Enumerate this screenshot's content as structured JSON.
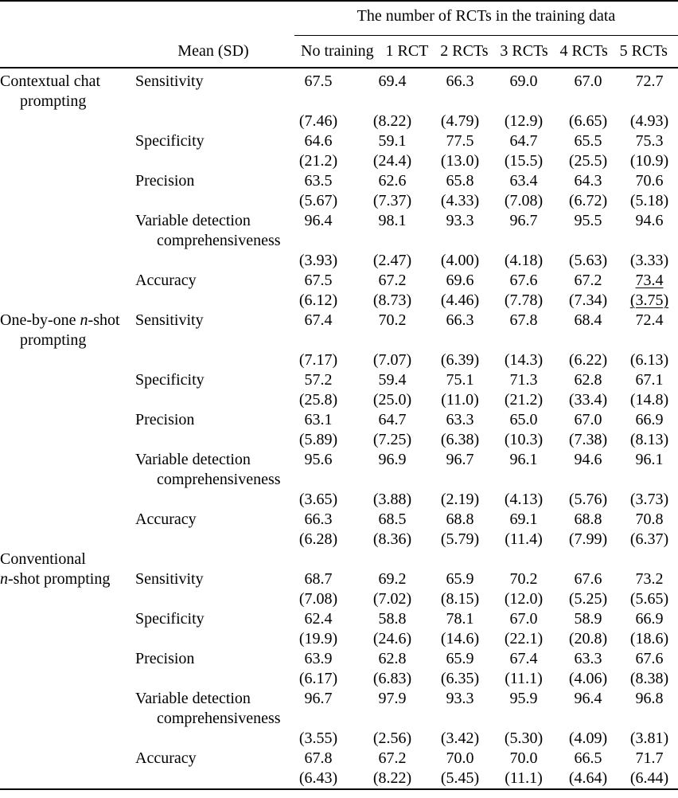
{
  "page": {
    "background_color": "#ffffff",
    "text_color": "#000000",
    "rule_color": "#000000"
  },
  "table": {
    "spanner_title": "The number of RCTs in the training data",
    "stat_header": "Mean (SD)",
    "col_headers": [
      "No training",
      "1 RCT",
      "2 RCTs",
      "3 RCTs",
      "4 RCTs",
      "5 RCTs"
    ],
    "row_group_labels": [
      "Contextual chat prompting",
      "One-by-one n-shot prompting",
      "Conventional n-shot prompting"
    ],
    "metric_labels": [
      "Sensitivity",
      "Specificity",
      "Precision",
      "Variable detection comprehensiveness",
      "Accuracy"
    ],
    "lines": [
      {
        "g": "Contextual chat",
        "m": "Sensitivity",
        "v": [
          "67.5",
          "69.4",
          "66.3",
          "69.0",
          "67.0",
          "72.7"
        ]
      },
      {
        "g": "prompting",
        "gi": 1
      },
      {
        "v": [
          "(7.46)",
          "(8.22)",
          "(4.79)",
          "(12.9)",
          "(6.65)",
          "(4.93)"
        ]
      },
      {
        "m": "Specificity",
        "v": [
          "64.6",
          "59.1",
          "77.5",
          "64.7",
          "65.5",
          "75.3"
        ]
      },
      {
        "v": [
          "(21.2)",
          "(24.4)",
          "(13.0)",
          "(15.5)",
          "(25.5)",
          "(10.9)"
        ]
      },
      {
        "m": "Precision",
        "v": [
          "63.5",
          "62.6",
          "65.8",
          "63.4",
          "64.3",
          "70.6"
        ]
      },
      {
        "v": [
          "(5.67)",
          "(7.37)",
          "(4.33)",
          "(7.08)",
          "(6.72)",
          "(5.18)"
        ]
      },
      {
        "m": "Variable detection",
        "v": [
          "96.4",
          "98.1",
          "93.3",
          "96.7",
          "95.5",
          "94.6"
        ]
      },
      {
        "m": "comprehensiveness",
        "mi": 1
      },
      {
        "v": [
          "(3.93)",
          "(2.47)",
          "(4.00)",
          "(4.18)",
          "(5.63)",
          "(3.33)"
        ]
      },
      {
        "m": "Accuracy",
        "v": [
          "67.5",
          "67.2",
          "69.6",
          "67.6",
          "67.2",
          "73.4"
        ],
        "ul": [
          5
        ]
      },
      {
        "v": [
          "(6.12)",
          "(8.73)",
          "(4.46)",
          "(7.78)",
          "(7.34)",
          "(3.75)"
        ],
        "ul": [
          5
        ]
      },
      {
        "g": "One-by-one n-shot",
        "gn": 1,
        "m": "Sensitivity",
        "v": [
          "67.4",
          "70.2",
          "66.3",
          "67.8",
          "68.4",
          "72.4"
        ]
      },
      {
        "g": "prompting",
        "gi": 1
      },
      {
        "v": [
          "(7.17)",
          "(7.07)",
          "(6.39)",
          "(14.3)",
          "(6.22)",
          "(6.13)"
        ]
      },
      {
        "m": "Specificity",
        "v": [
          "57.2",
          "59.4",
          "75.1",
          "71.3",
          "62.8",
          "67.1"
        ]
      },
      {
        "v": [
          "(25.8)",
          "(25.0)",
          "(11.0)",
          "(21.2)",
          "(33.4)",
          "(14.8)"
        ]
      },
      {
        "m": "Precision",
        "v": [
          "63.1",
          "64.7",
          "63.3",
          "65.0",
          "67.0",
          "66.9"
        ]
      },
      {
        "v": [
          "(5.89)",
          "(7.25)",
          "(6.38)",
          "(10.3)",
          "(7.38)",
          "(8.13)"
        ]
      },
      {
        "m": "Variable detection",
        "v": [
          "95.6",
          "96.9",
          "96.7",
          "96.1",
          "94.6",
          "96.1"
        ]
      },
      {
        "m": "comprehensiveness",
        "mi": 1
      },
      {
        "v": [
          "(3.65)",
          "(3.88)",
          "(2.19)",
          "(4.13)",
          "(5.76)",
          "(3.73)"
        ]
      },
      {
        "m": "Accuracy",
        "v": [
          "66.3",
          "68.5",
          "68.8",
          "69.1",
          "68.8",
          "70.8"
        ]
      },
      {
        "v": [
          "(6.28)",
          "(8.36)",
          "(5.79)",
          "(11.4)",
          "(7.99)",
          "(6.37)"
        ]
      },
      {
        "g": "Conventional"
      },
      {
        "g": "n-shot prompting",
        "gn": 1,
        "m": "Sensitivity",
        "v": [
          "68.7",
          "69.2",
          "65.9",
          "70.2",
          "67.6",
          "73.2"
        ]
      },
      {
        "v": [
          "(7.08)",
          "(7.02)",
          "(8.15)",
          "(12.0)",
          "(5.25)",
          "(5.65)"
        ]
      },
      {
        "m": "Specificity",
        "v": [
          "62.4",
          "58.8",
          "78.1",
          "67.0",
          "58.9",
          "66.9"
        ]
      },
      {
        "v": [
          "(19.9)",
          "(24.6)",
          "(14.6)",
          "(22.1)",
          "(20.8)",
          "(18.6)"
        ]
      },
      {
        "m": "Precision",
        "v": [
          "63.9",
          "62.8",
          "65.9",
          "67.4",
          "63.3",
          "67.6"
        ]
      },
      {
        "v": [
          "(6.17)",
          "(6.83)",
          "(6.35)",
          "(11.1)",
          "(4.06)",
          "(8.38)"
        ]
      },
      {
        "m": "Variable detection",
        "v": [
          "96.7",
          "97.9",
          "93.3",
          "95.9",
          "96.4",
          "96.8"
        ]
      },
      {
        "m": "comprehensiveness",
        "mi": 1
      },
      {
        "v": [
          "(3.55)",
          "(2.56)",
          "(3.42)",
          "(5.30)",
          "(4.09)",
          "(3.81)"
        ]
      },
      {
        "m": "Accuracy",
        "v": [
          "67.8",
          "67.2",
          "70.0",
          "70.0",
          "66.5",
          "71.7"
        ]
      },
      {
        "v": [
          "(6.43)",
          "(8.22)",
          "(5.45)",
          "(11.1)",
          "(4.64)",
          "(6.44)"
        ]
      }
    ]
  }
}
